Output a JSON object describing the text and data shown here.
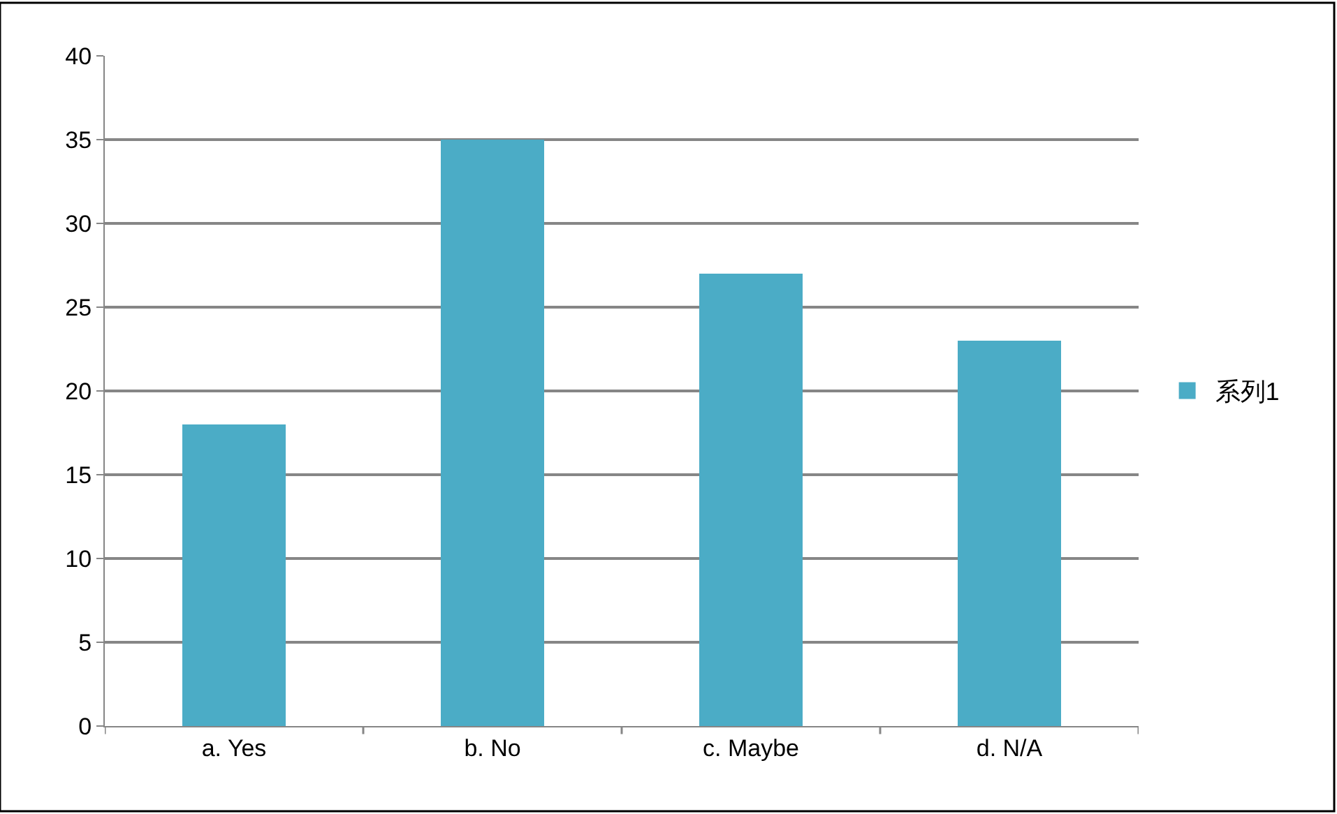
{
  "chart_data": {
    "type": "bar",
    "categories": [
      "a. Yes",
      "b. No",
      "c. Maybe",
      "d. N/A"
    ],
    "series": [
      {
        "name": "系列1",
        "color": "#4bacc6",
        "values": [
          18,
          35,
          27,
          23
        ]
      }
    ],
    "ylim": [
      0,
      40
    ],
    "yticks": [
      0,
      5,
      10,
      15,
      20,
      25,
      30,
      35,
      40
    ],
    "grid": "y",
    "legend": "right"
  }
}
